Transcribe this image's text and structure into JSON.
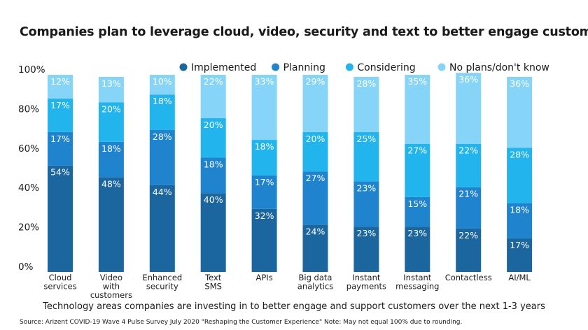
{
  "chart_data": {
    "type": "bar",
    "stacked": true,
    "title": "Companies plan to leverage cloud, video, security and text to better engage customers",
    "xlabel": "Technology areas companies are investing in to better engage and support customers over the next 1-3 years",
    "ylabel": "",
    "ylim": [
      0,
      100
    ],
    "yticks": [
      0,
      20,
      40,
      60,
      80,
      100
    ],
    "ytick_labels": [
      "0%",
      "20%",
      "40%",
      "60%",
      "80%",
      "100%"
    ],
    "legend_position": "top-right",
    "categories": [
      "Cloud\nservices",
      "Video\nwith\ncustomers",
      "Enhanced\nsecurity",
      "Text\nSMS",
      "APIs",
      "Big data\nanalytics",
      "Instant\npayments",
      "Instant\nmessaging",
      "Contactless",
      "AI/ML"
    ],
    "series": [
      {
        "name": "Implemented",
        "color": "#1b669e",
        "values": [
          54,
          48,
          44,
          40,
          32,
          24,
          23,
          23,
          22,
          17
        ]
      },
      {
        "name": "Planning",
        "color": "#1f84cd",
        "values": [
          17,
          18,
          28,
          18,
          17,
          27,
          23,
          15,
          21,
          18
        ]
      },
      {
        "name": "Considering",
        "color": "#22b4ec",
        "values": [
          17,
          20,
          18,
          20,
          18,
          20,
          25,
          27,
          22,
          28
        ]
      },
      {
        "name": "No plans/don't know",
        "color": "#86d4f7",
        "values": [
          12,
          13,
          10,
          22,
          33,
          29,
          28,
          35,
          36,
          36
        ]
      }
    ],
    "value_label_suffix": "%"
  },
  "source": "Source: Arizent COVID-19 Wave 4 Pulse Survey July 2020 \"Reshaping the Customer Experience\" Note: May not equal 100% due to rounding."
}
